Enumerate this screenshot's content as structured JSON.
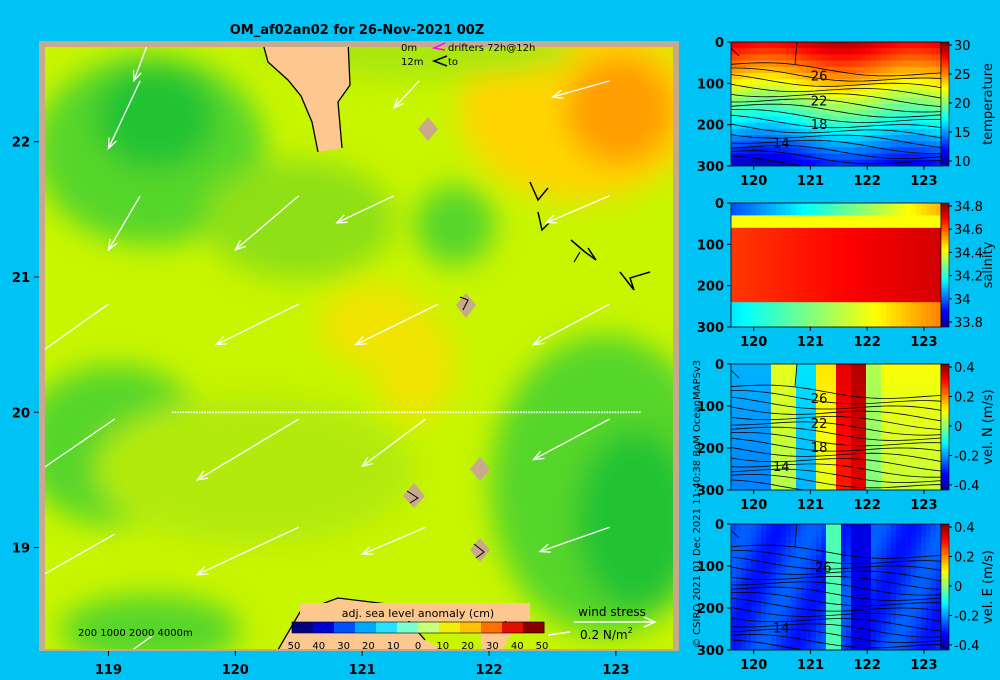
{
  "title": "OM_af02an02 for 26-Nov-2021 00Z",
  "legend": {
    "drifters_depth_1": "0m",
    "drifters_depth_2": "12m",
    "drifters_label": "drifters 72h@12h",
    "drifters_label_2": "to",
    "drifter_0m_color": "#ff00ff",
    "drifter_12m_color": "#000000"
  },
  "colorbar": {
    "title": "adj. sea level anomaly (cm)",
    "ticks": [
      "50",
      "40",
      "30",
      "20",
      "10",
      "0",
      "10",
      "20",
      "30",
      "40",
      "50"
    ]
  },
  "depth_legend": "200  1000  2000  4000m",
  "wind": {
    "label": "wind stress",
    "scale": "0.2 N/m",
    "scale_sup": "2"
  },
  "credit": "© CSIRO 2021    01 Dec 2021 11:40:38 BoM OceanMAPSv3",
  "colors": {
    "background": "#00c3f5",
    "land": "#fcc890",
    "map_frame": "#c8a98c",
    "sla_base": "#c8f500",
    "sla_negative": "#3cd23c",
    "sla_positive": "#ffaa00"
  },
  "chart_data": [
    {
      "type": "heatmap",
      "name": "sea level anomaly map",
      "xticks": [
        "119",
        "120",
        "121",
        "122",
        "123"
      ],
      "yticks": [
        "22",
        "21",
        "20",
        "19"
      ],
      "xlim": [
        118.5,
        123.45
      ],
      "ylim": [
        18.25,
        22.7
      ],
      "section_line": {
        "lat": 20.0,
        "lon_start": 119.5,
        "lon_end": 123.2
      },
      "wind_vectors": [
        {
          "lon": 119.3,
          "lat": 22.7,
          "dlon": -0.1,
          "dlat": -0.25
        },
        {
          "lon": 119.25,
          "lat": 22.45,
          "dlon": -0.25,
          "dlat": -0.5
        },
        {
          "lon": 119.25,
          "lat": 21.6,
          "dlon": -0.25,
          "dlat": -0.4
        },
        {
          "lon": 120.5,
          "lat": 21.6,
          "dlon": -0.5,
          "dlat": -0.4
        },
        {
          "lon": 121.45,
          "lat": 22.45,
          "dlon": -0.2,
          "dlat": -0.2
        },
        {
          "lon": 122.95,
          "lat": 22.45,
          "dlon": -0.45,
          "dlat": -0.12
        },
        {
          "lon": 121.25,
          "lat": 21.6,
          "dlon": -0.45,
          "dlat": -0.2
        },
        {
          "lon": 122.95,
          "lat": 21.6,
          "dlon": -0.5,
          "dlat": -0.2
        },
        {
          "lon": 119.0,
          "lat": 20.8,
          "dlon": -0.6,
          "dlat": -0.4
        },
        {
          "lon": 120.5,
          "lat": 20.8,
          "dlon": -0.65,
          "dlat": -0.3
        },
        {
          "lon": 121.6,
          "lat": 20.8,
          "dlon": -0.65,
          "dlat": -0.3
        },
        {
          "lon": 122.95,
          "lat": 20.8,
          "dlon": -0.6,
          "dlat": -0.3
        },
        {
          "lon": 119.05,
          "lat": 19.95,
          "dlon": -0.7,
          "dlat": -0.45
        },
        {
          "lon": 120.5,
          "lat": 19.95,
          "dlon": -0.8,
          "dlat": -0.45
        },
        {
          "lon": 121.5,
          "lat": 19.95,
          "dlon": -0.5,
          "dlat": -0.35
        },
        {
          "lon": 122.95,
          "lat": 19.95,
          "dlon": -0.6,
          "dlat": -0.3
        },
        {
          "lon": 119.05,
          "lat": 19.1,
          "dlon": -0.75,
          "dlat": -0.4
        },
        {
          "lon": 120.5,
          "lat": 19.15,
          "dlon": -0.8,
          "dlat": -0.35
        },
        {
          "lon": 121.5,
          "lat": 19.15,
          "dlon": -0.5,
          "dlat": -0.2
        },
        {
          "lon": 122.95,
          "lat": 19.15,
          "dlon": -0.55,
          "dlat": -0.18
        },
        {
          "lon": 119.35,
          "lat": 18.35,
          "dlon": -0.3,
          "dlat": -0.2
        }
      ]
    },
    {
      "type": "heatmap",
      "name": "temperature section",
      "xticks": [
        "120",
        "121",
        "122",
        "123"
      ],
      "yticks": [
        "0",
        "100",
        "200",
        "300"
      ],
      "cbar_ticks": [
        "30",
        "25",
        "20",
        "15",
        "10"
      ],
      "cbar_label": "temperature",
      "contour_labels": [
        "26",
        "22",
        "18",
        "14"
      ]
    },
    {
      "type": "heatmap",
      "name": "salinity section",
      "xticks": [
        "120",
        "121",
        "122",
        "123"
      ],
      "yticks": [
        "0",
        "100",
        "200",
        "300"
      ],
      "cbar_ticks": [
        "34.8",
        "34.6",
        "34.4",
        "34.2",
        "34",
        "33.8"
      ],
      "cbar_label": "salinity"
    },
    {
      "type": "heatmap",
      "name": "northward velocity section",
      "xticks": [
        "120",
        "121",
        "122",
        "123"
      ],
      "yticks": [
        "0",
        "100",
        "200",
        "300"
      ],
      "cbar_ticks": [
        "0.4",
        "0.2",
        "0",
        "-0.2",
        "-0.4"
      ],
      "cbar_label": "vel. N (m/s)",
      "contour_labels": [
        "26",
        "22",
        "18",
        "14"
      ]
    },
    {
      "type": "heatmap",
      "name": "eastward velocity section",
      "xticks": [
        "120",
        "121",
        "122",
        "123"
      ],
      "yticks": [
        "0",
        "100",
        "200",
        "300"
      ],
      "cbar_ticks": [
        "0.4",
        "0.2",
        "0",
        "-0.2",
        "-0.4"
      ],
      "cbar_label": "vel. E (m/s)",
      "contour_labels": [
        "26",
        "14"
      ]
    }
  ]
}
